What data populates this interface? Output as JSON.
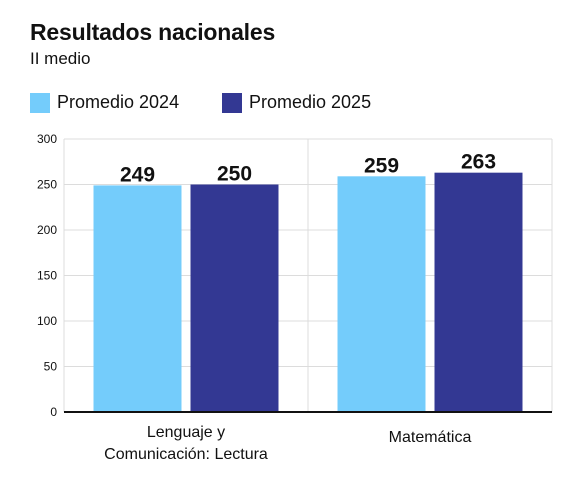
{
  "chart_data": {
    "type": "bar",
    "title": "Resultados nacionales",
    "subtitle": "II medio",
    "categories": [
      [
        "Lenguaje y",
        "Comunicación: Lectura"
      ],
      [
        "Matemática"
      ]
    ],
    "series": [
      {
        "name": "Promedio 2024",
        "color": "#74ccfb",
        "values": [
          249,
          259
        ]
      },
      {
        "name": "Promedio 2025",
        "color": "#333893",
        "values": [
          250,
          263
        ]
      }
    ],
    "ylim": [
      0,
      300
    ],
    "yticks": [
      "0",
      "50",
      "100",
      "150",
      "200",
      "250",
      "300"
    ],
    "grid": true,
    "legend": "top-left"
  }
}
